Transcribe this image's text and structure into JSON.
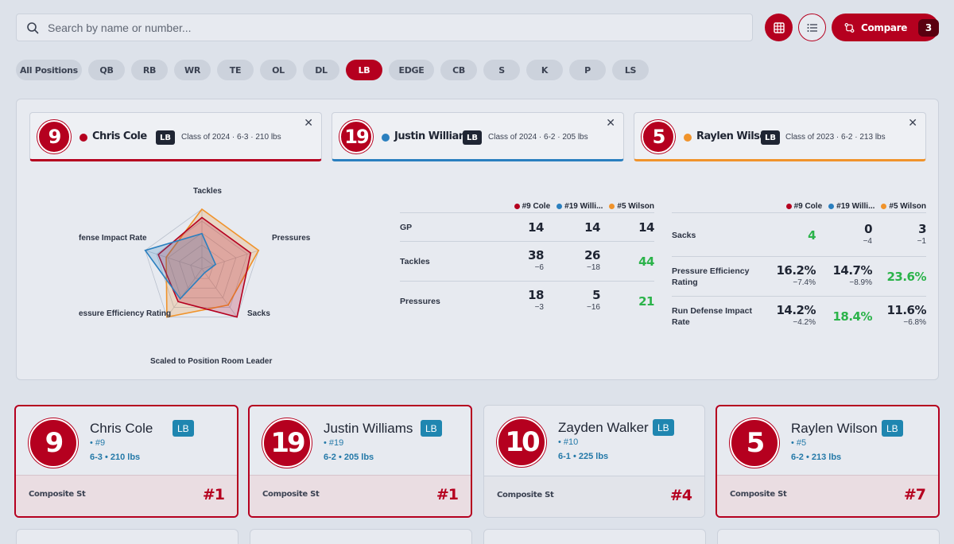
{
  "search": {
    "placeholder": "Search by name or number..."
  },
  "toolbar": {
    "grid_icon": "grid-icon",
    "list_icon": "list-icon",
    "compare_label": "Compare",
    "compare_count": "3"
  },
  "positions": [
    "All Positions",
    "QB",
    "RB",
    "WR",
    "TE",
    "OL",
    "DL",
    "LB",
    "EDGE",
    "CB",
    "S",
    "K",
    "P",
    "LS"
  ],
  "active_position": "LB",
  "compare_players": [
    {
      "number": "9",
      "name": "Chris Cole",
      "pos": "LB",
      "meta": "Class of 2024 · 6-3 · 210 lbs",
      "color": "#b5001f"
    },
    {
      "number": "19",
      "name": "Justin Williams",
      "pos": "LB",
      "meta": "Class of 2024 · 6-2 · 205 lbs",
      "color": "#2a7fbf"
    },
    {
      "number": "5",
      "name": "Raylen Wilson",
      "pos": "LB",
      "meta": "Class of 2023 · 6-2 · 213 lbs",
      "color": "#f0932b"
    }
  ],
  "radar": {
    "axes": [
      "Tackles",
      "Pressures",
      "Sacks",
      "Pressure Efficiency Rating",
      "Run Defense Impact Rate"
    ],
    "axis_labels_visible": [
      "Tackles",
      "Pressures",
      "Sacks",
      "essure Efficiency Rating",
      "fense Impact Rate"
    ],
    "caption": "Scaled to Position Room Leader",
    "series": [
      {
        "name": "#9 Cole",
        "color": "#b5001f",
        "values": [
          0.86,
          0.86,
          1.0,
          0.68,
          0.77
        ]
      },
      {
        "name": "#19 Williams",
        "color": "#2a7fbf",
        "values": [
          0.59,
          0.24,
          0.0,
          0.62,
          1.0
        ]
      },
      {
        "name": "#5 Wilson",
        "color": "#f0932b",
        "values": [
          1.0,
          1.0,
          0.75,
          1.0,
          0.63
        ]
      }
    ]
  },
  "legend": [
    "#9 Cole",
    "#19 Willi...",
    "#5 Wilson"
  ],
  "table_left": [
    {
      "label": "GP",
      "values": [
        {
          "v": "14",
          "d": ""
        },
        {
          "v": "14",
          "d": ""
        },
        {
          "v": "14",
          "d": ""
        }
      ]
    },
    {
      "label": "Tackles",
      "values": [
        {
          "v": "38",
          "d": "−6"
        },
        {
          "v": "26",
          "d": "−18"
        },
        {
          "v": "44",
          "d": "",
          "best": true
        }
      ]
    },
    {
      "label": "Pressures",
      "values": [
        {
          "v": "18",
          "d": "−3"
        },
        {
          "v": "5",
          "d": "−16"
        },
        {
          "v": "21",
          "d": "",
          "best": true
        }
      ]
    }
  ],
  "table_right": [
    {
      "label": "Sacks",
      "values": [
        {
          "v": "4",
          "d": "",
          "best": true
        },
        {
          "v": "0",
          "d": "−4"
        },
        {
          "v": "3",
          "d": "−1"
        }
      ]
    },
    {
      "label": "Pressure Efficiency Rating",
      "label_lines": [
        "Pressure Efficiency",
        "Rating"
      ],
      "values": [
        {
          "v": "16.2%",
          "d": "−7.4%"
        },
        {
          "v": "14.7%",
          "d": "−8.9%"
        },
        {
          "v": "23.6%",
          "d": "",
          "best": true
        }
      ]
    },
    {
      "label": "Run Defense Impact Rate",
      "label_lines": [
        "Run Defense Impact",
        "Rate"
      ],
      "values": [
        {
          "v": "14.2%",
          "d": "−4.2%"
        },
        {
          "v": "18.4%",
          "d": "",
          "best": true
        },
        {
          "v": "11.6%",
          "d": "−6.8%"
        }
      ]
    }
  ],
  "cards": [
    {
      "number": "9",
      "name": "Chris Cole",
      "pos": "LB",
      "jersey": "• #9",
      "hw": "6-3 • 210 lbs",
      "foot_label": "Composite St",
      "rank": "#1",
      "selected": true
    },
    {
      "number": "19",
      "name": "Justin Williams",
      "pos": "LB",
      "jersey": "• #19",
      "hw": "6-2 • 205 lbs",
      "foot_label": "Composite St",
      "rank": "#1",
      "selected": true
    },
    {
      "number": "10",
      "name": "Zayden Walker",
      "pos": "LB",
      "jersey": "• #10",
      "hw": "6-1 • 225 lbs",
      "foot_label": "Composite St",
      "rank": "#4",
      "selected": false
    },
    {
      "number": "5",
      "name": "Raylen Wilson",
      "pos": "LB",
      "jersey": "• #5",
      "hw": "6-2 • 213 lbs",
      "foot_label": "Composite St",
      "rank": "#7",
      "selected": true
    }
  ]
}
